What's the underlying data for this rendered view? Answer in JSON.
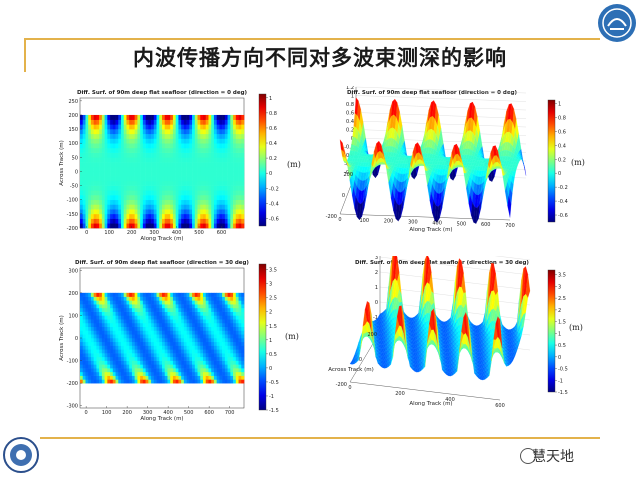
{
  "slide": {
    "title": "内波传播方向不同对多波束测深的影响",
    "watermark": "慧天地",
    "unit_label": "(m)"
  },
  "icons": {
    "logo": "university-logo-icon",
    "seal": "institution-seal-icon",
    "watermark": "wechat-icon"
  },
  "colors": {
    "accent_line": "#e3b24b",
    "title": "#1a1a1a"
  },
  "chart_data": [
    {
      "type": "heatmap",
      "title": "Diff. Surf. of 90m deep flat seafloor (direction = 0 deg)",
      "xlabel": "Along Track (m)",
      "ylabel": "Across Track (m)",
      "xlim": [
        -30,
        700
      ],
      "ylim": [
        -200,
        260
      ],
      "xticks": [
        0,
        100,
        200,
        300,
        400,
        500,
        600
      ],
      "yticks": [
        250,
        200,
        150,
        100,
        50,
        0,
        -50,
        -100,
        -150,
        -200
      ],
      "ytick_labels": [
        "250",
        "200",
        "150",
        "100",
        "50",
        "0",
        "-50",
        "-100",
        "-150",
        "-200"
      ],
      "colorbar": {
        "range": [
          -0.7,
          1.05
        ],
        "ticks": [
          "1",
          "0.8",
          "0.6",
          "0.4",
          "0.2",
          "0",
          "-0.2",
          "-0.4",
          "-0.6"
        ]
      }
    },
    {
      "type": "surface",
      "title": "Diff. Surf. of 90m deep flat seafloor (direction = 0 deg)",
      "xlabel": "Along Track (m)",
      "zticks": [
        "1.2",
        "1",
        "0.8",
        "0.6",
        "0.4",
        "0.2",
        "0",
        "-0.2",
        "-0.4",
        "-0.6",
        "-0.8"
      ],
      "xticks": [
        "0",
        "100",
        "200",
        "300",
        "400",
        "500",
        "600",
        "700"
      ],
      "yticks": [
        "200",
        "0",
        "-200"
      ],
      "colorbar": {
        "range": [
          -0.7,
          1.05
        ],
        "ticks": [
          "1",
          "0.8",
          "0.6",
          "0.4",
          "0.2",
          "0",
          "-0.2",
          "-0.4",
          "-0.6"
        ]
      }
    },
    {
      "type": "heatmap",
      "title": "Diff. Surf. of 90m deep flat seafloor (direction = 30 deg)",
      "xlabel": "Along Track (m)",
      "ylabel": "Across Track (m)",
      "xlim": [
        -30,
        770
      ],
      "ylim": [
        -310,
        310
      ],
      "xticks": [
        0,
        100,
        200,
        300,
        400,
        500,
        600,
        700
      ],
      "yticks": [
        300,
        200,
        100,
        0,
        -100,
        -200,
        -300
      ],
      "ytick_labels": [
        "300",
        "200",
        "100",
        "0",
        "-100",
        "-200",
        "-300"
      ],
      "colorbar": {
        "range": [
          -1.5,
          3.7
        ],
        "ticks": [
          "3.5",
          "3",
          "2.5",
          "2",
          "1.5",
          "1",
          "0.5",
          "0",
          "-0.5",
          "-1",
          "-1.5"
        ]
      }
    },
    {
      "type": "surface",
      "title": "Diff. Surf. of 90m deep flat seafloor (direction = 30 deg)",
      "xlabel": "Along Track (m)",
      "ylabel": "Across Track (m)",
      "zticks": [
        "4",
        "3",
        "2",
        "1",
        "0",
        "-1",
        "-2"
      ],
      "xticks": [
        "0",
        "200",
        "400",
        "600"
      ],
      "yticks": [
        "200",
        "0",
        "-200"
      ],
      "colorbar": {
        "range": [
          -1.5,
          3.7
        ],
        "ticks": [
          "3.5",
          "3",
          "2.5",
          "2",
          "1.5",
          "1",
          "0.5",
          "0",
          "-0.5",
          "-1",
          "-1.5"
        ]
      }
    }
  ]
}
